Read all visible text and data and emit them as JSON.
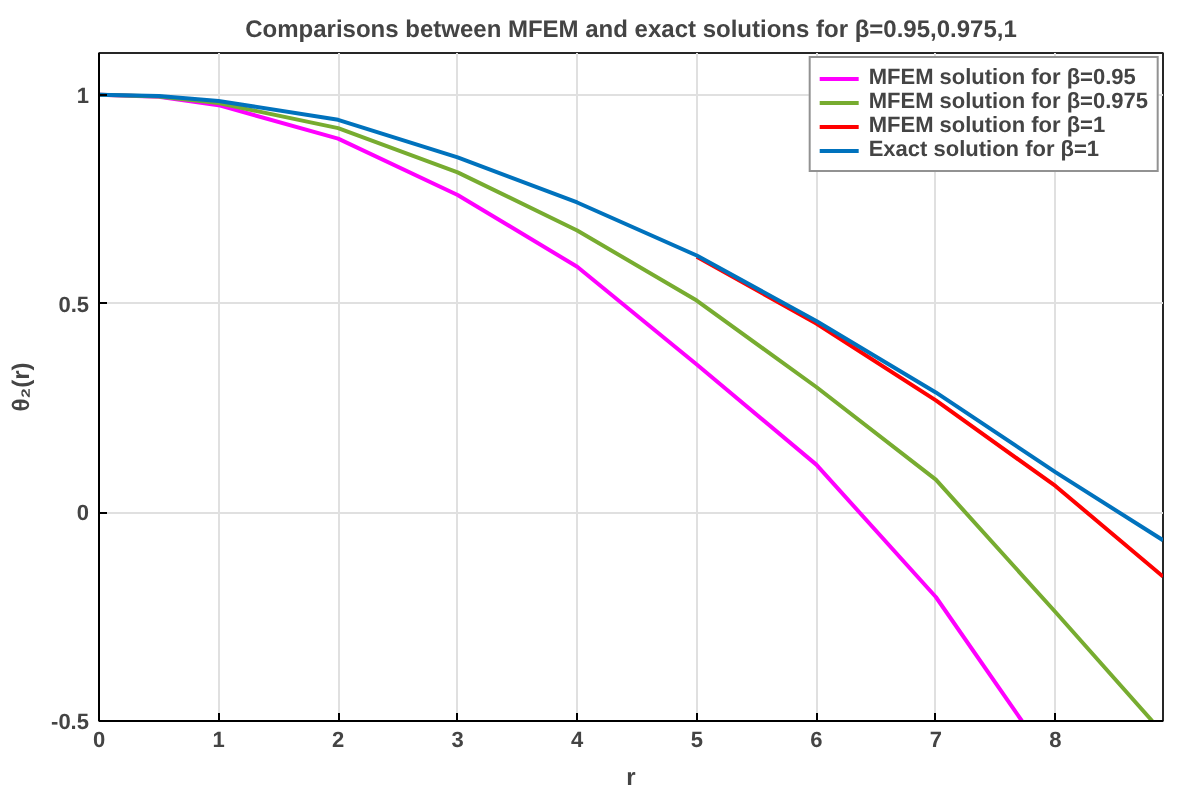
{
  "chart_data": {
    "type": "line",
    "title": "Comparisons between MFEM and exact solutions for β=0.95,0.975,1",
    "xlabel": "r",
    "ylabel": "θ₂(r)",
    "xlim": [
      0,
      8.9
    ],
    "ylim": [
      -0.5,
      1.1
    ],
    "xticks": [
      0,
      1,
      2,
      3,
      4,
      5,
      6,
      7,
      8
    ],
    "yticks": [
      -0.5,
      0,
      0.5,
      1
    ],
    "grid": true,
    "legend": "top right",
    "line_style": "solid",
    "marker": "none",
    "series": [
      {
        "name": "MFEM solution for β=0.95",
        "color": "#ff00ff",
        "x": [
          0,
          0.5,
          1,
          2,
          3,
          4,
          5,
          6,
          7,
          7.72
        ],
        "values": [
          1,
          0.995,
          0.975,
          0.895,
          0.76,
          0.588,
          0.354,
          0.114,
          -0.203,
          -0.5
        ]
      },
      {
        "name": "MFEM solution for β=0.975",
        "color": "#77ac30",
        "x": [
          0,
          0.5,
          1,
          2,
          3,
          4,
          5,
          6,
          7,
          8,
          8.81
        ],
        "values": [
          1,
          0.996,
          0.98,
          0.92,
          0.814,
          0.675,
          0.507,
          0.3,
          0.078,
          -0.239,
          -0.5
        ]
      },
      {
        "name": "MFEM solution for β=1",
        "color": "#ff0000",
        "x": [
          5,
          6,
          7,
          8,
          8.9
        ],
        "values": [
          0.612,
          0.452,
          0.268,
          0.063,
          -0.154
        ]
      },
      {
        "name": "Exact solution for β=1",
        "color": "#0072bd",
        "x": [
          0,
          0.5,
          1,
          2,
          3,
          4,
          5,
          6,
          7,
          8,
          8.9
        ],
        "values": [
          1,
          0.997,
          0.985,
          0.94,
          0.85,
          0.742,
          0.615,
          0.458,
          0.287,
          0.096,
          -0.067
        ]
      }
    ]
  }
}
